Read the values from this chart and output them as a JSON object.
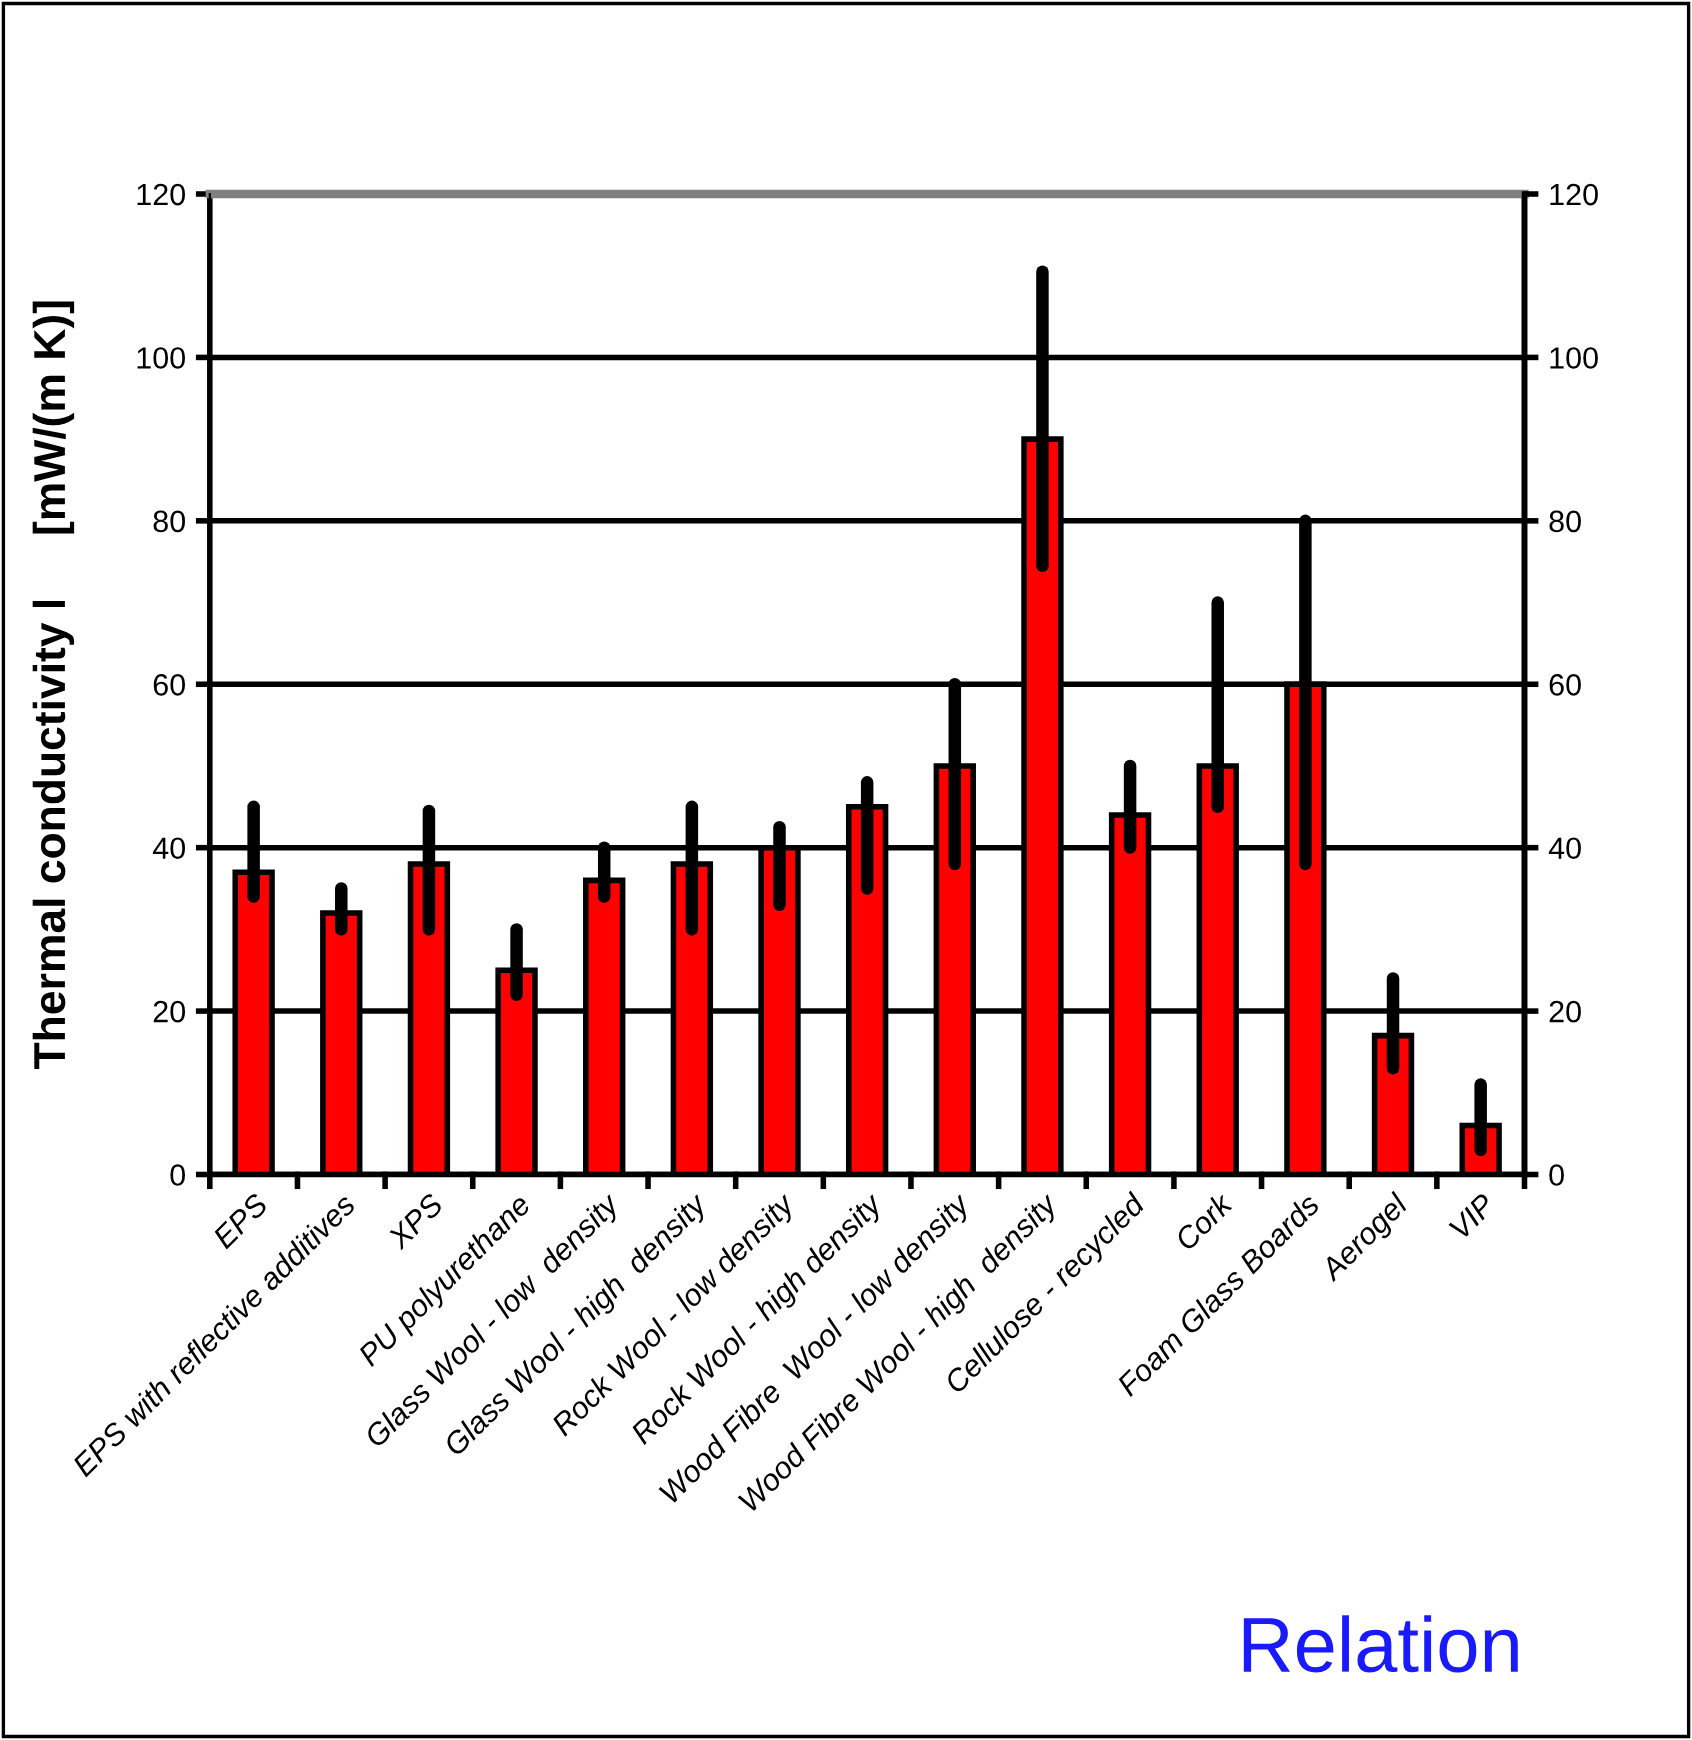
{
  "chart_data": {
    "type": "bar",
    "ylabel": "Thermal conductivity l     [mW/(m K)]",
    "categories": [
      "EPS",
      "EPS with reflective additives",
      "XPS",
      "PU polyurethane",
      "Glass Wool - low  density",
      "Glass Wool - high  density",
      "Rock Wool - low density",
      "Rock Wool - high density",
      "Wood Fibre  Wool - low density",
      "Wood Fibre Wool - high  density",
      "Cellulose - recycled",
      "Cork",
      "Foam Glass Boards",
      "Aerogel",
      "VIP"
    ],
    "series": [
      {
        "color": "#ff0000",
        "values": [
          37,
          32,
          38,
          25,
          36,
          38,
          40,
          45,
          50,
          90,
          44,
          50,
          60,
          17,
          6
        ],
        "errors": [
          [
            34,
            45
          ],
          [
            30,
            35
          ],
          [
            30,
            44.5
          ],
          [
            22,
            30
          ],
          [
            34,
            40
          ],
          [
            30,
            45
          ],
          [
            33,
            42.5
          ],
          [
            35,
            48
          ],
          [
            38,
            60
          ],
          [
            74.5,
            110.5
          ],
          [
            40,
            50
          ],
          [
            45,
            70
          ],
          [
            38,
            80
          ],
          [
            13,
            24
          ],
          [
            3,
            11
          ]
        ]
      }
    ],
    "ylim": [
      0,
      120
    ],
    "yticks": [
      0,
      20,
      40,
      60,
      80,
      100,
      120
    ],
    "y2lim": [
      0,
      120
    ],
    "y2ticks": [
      0,
      20,
      40,
      60,
      80,
      100,
      120
    ],
    "grid": "y",
    "annotations": [
      "Relation"
    ]
  }
}
